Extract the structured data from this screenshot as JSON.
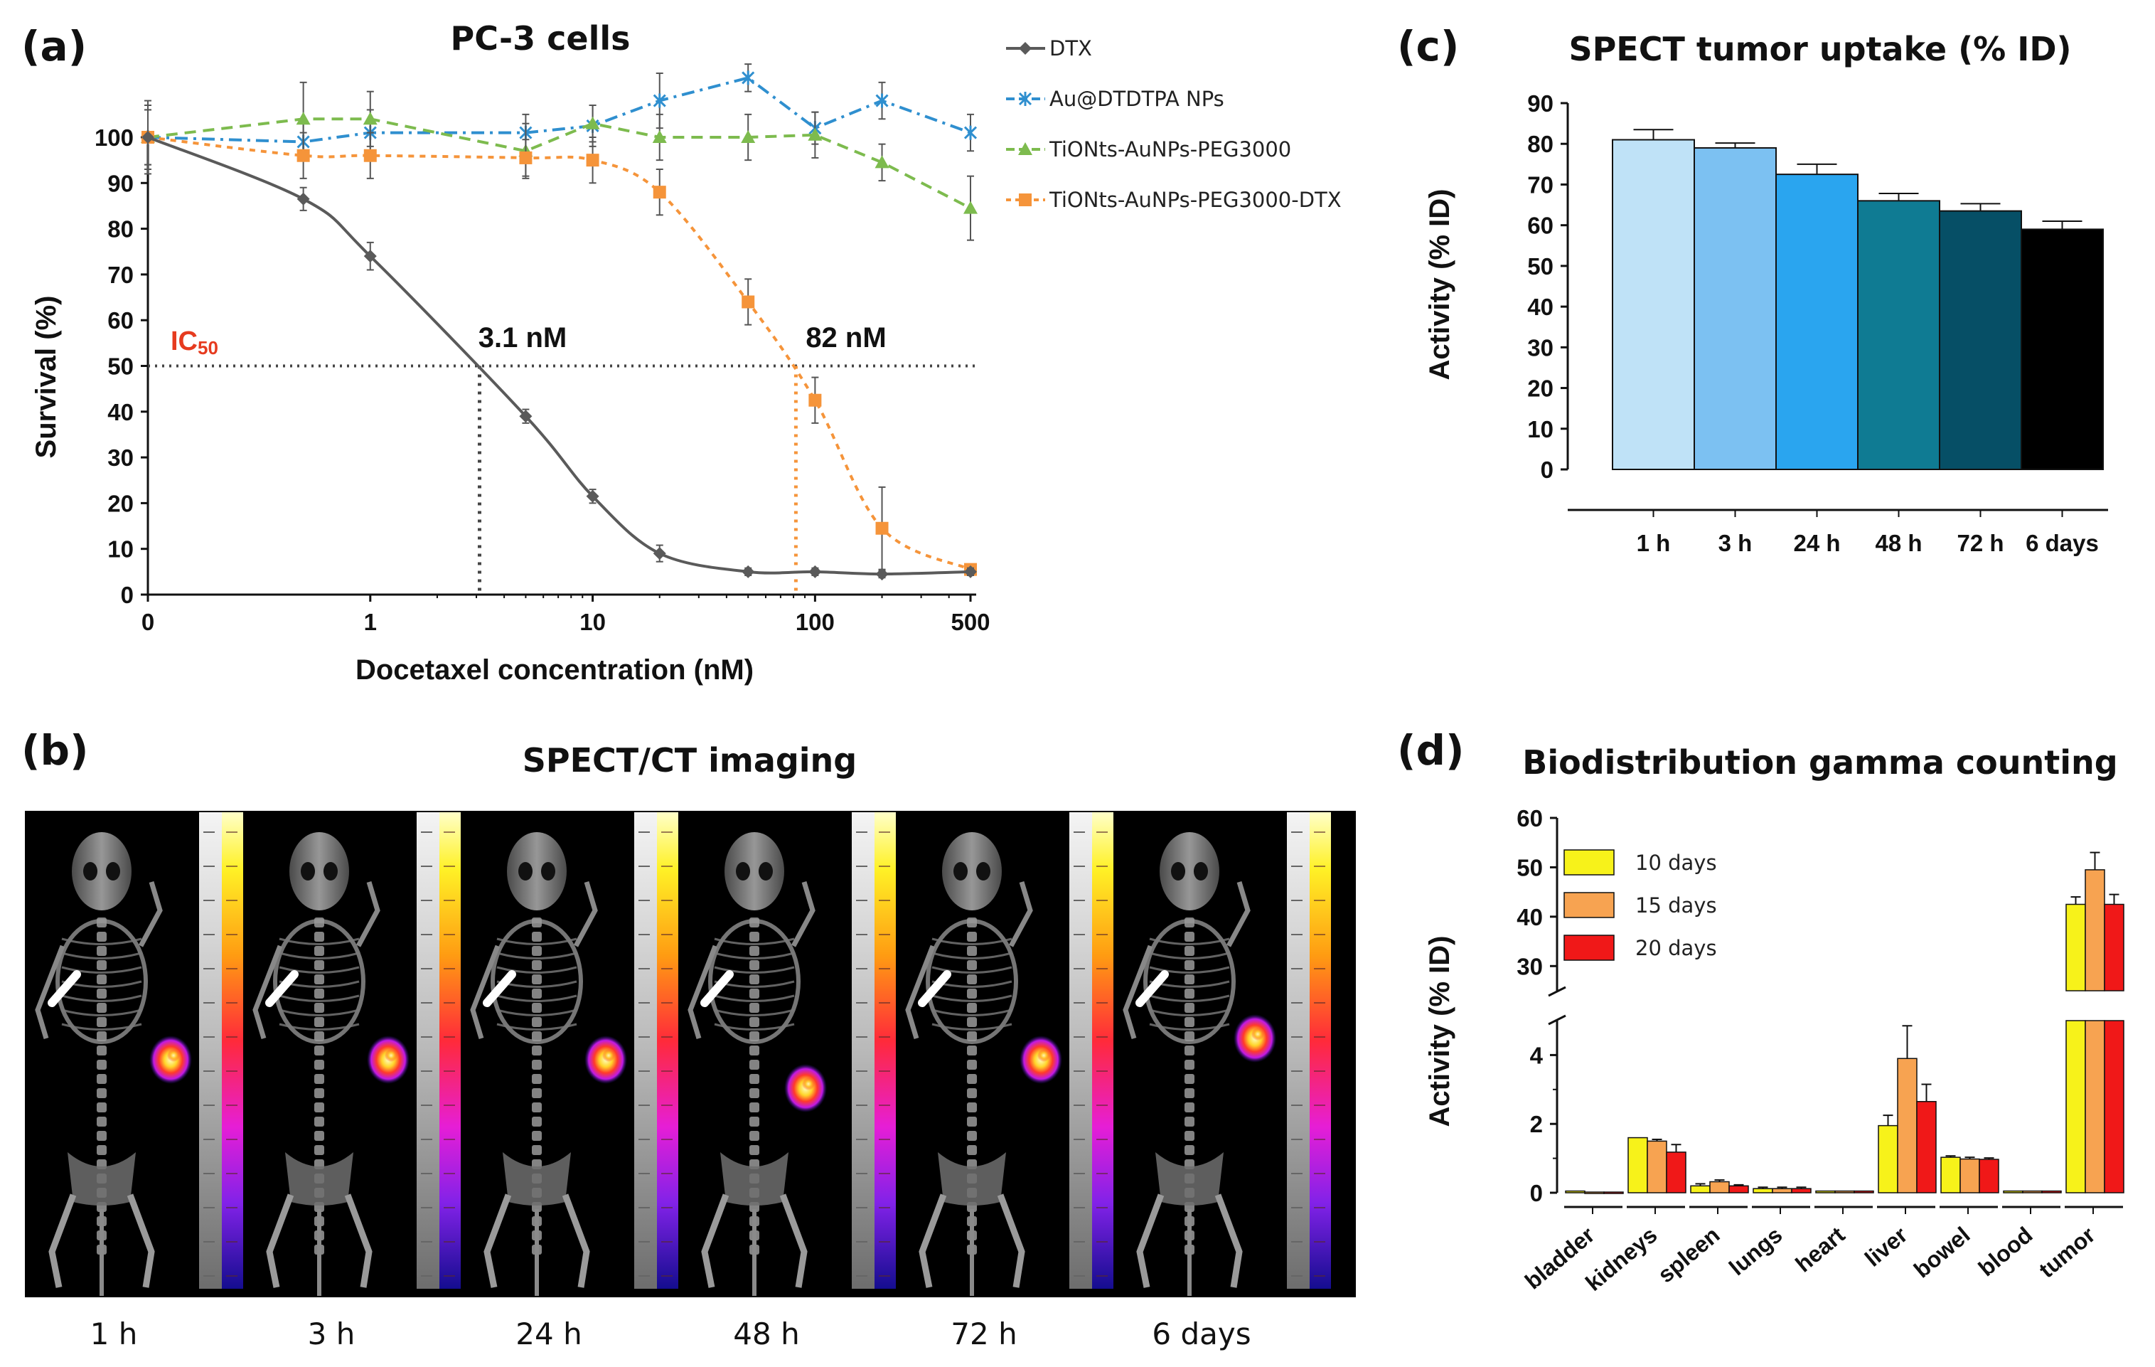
{
  "panels": {
    "a": {
      "letter": "(a)",
      "title": "PC-3 cells"
    },
    "b": {
      "letter": "(b)",
      "title": "SPECT/CT imaging"
    },
    "c": {
      "letter": "(c)",
      "title": "SPECT tumor uptake (% ID)"
    },
    "d": {
      "letter": "(d)",
      "title": "Biodistribution gamma counting"
    }
  },
  "chart_data": [
    {
      "panel": "a",
      "type": "line",
      "title": "PC-3 cells",
      "xlabel": "Docetaxel concentration (nM)",
      "ylabel": "Survival (%)",
      "xscale": "log",
      "xticks": [
        "0",
        "1",
        "10",
        "100",
        "500"
      ],
      "yticks": [
        0,
        10,
        20,
        30,
        40,
        50,
        60,
        70,
        80,
        90,
        100
      ],
      "ylim": [
        0,
        100
      ],
      "legend_position": "right",
      "x": [
        0.1,
        0.5,
        1,
        5,
        10,
        20,
        50,
        100,
        200,
        500
      ],
      "series": [
        {
          "name": "DTX",
          "color": "#5a5a5a",
          "marker": "diamond",
          "values": [
            100,
            86.5,
            74,
            39,
            21.5,
            9,
            5,
            5,
            4.5,
            5
          ]
        },
        {
          "name": "Au@DTDTPA NPs",
          "color": "#2f8fcf",
          "marker": "x",
          "values": [
            100,
            99,
            101,
            101,
            102.5,
            108,
            113,
            102,
            108,
            101
          ]
        },
        {
          "name": "TiONts-AuNPs-PEG3000",
          "color": "#7dbb4e",
          "marker": "triangle",
          "values": [
            100,
            104,
            104,
            97,
            103,
            100,
            100,
            100.5,
            94.5,
            84.5
          ]
        },
        {
          "name": "TiONts-AuNPs-PEG3000-DTX",
          "color": "#f5943a",
          "marker": "square",
          "values": [
            100,
            96,
            96,
            95.5,
            95,
            88,
            64,
            42.5,
            14.5,
            5.5
          ]
        }
      ],
      "annotations": {
        "ic50_label": "IC50",
        "ic50_level": 50,
        "dtx_ic50": "3.1 nM",
        "dtx_ic50_x": 3.1,
        "np_ic50": "82 nM",
        "np_ic50_x": 82
      }
    },
    {
      "panel": "c",
      "type": "bar",
      "title": "SPECT tumor uptake (% ID)",
      "xlabel": "",
      "ylabel": "Activity (% ID)",
      "categories": [
        "1 h",
        "3 h",
        "24 h",
        "48 h",
        "72 h",
        "6 days"
      ],
      "values": [
        81,
        79,
        72.5,
        66,
        63.5,
        59
      ],
      "errors": [
        2.5,
        1.2,
        2.5,
        1.8,
        1.8,
        2
      ],
      "colors": [
        "#bfe2f7",
        "#7cc1f2",
        "#2aa5ef",
        "#0f7b93",
        "#064f66",
        "#000000"
      ],
      "ylim": [
        0,
        90
      ],
      "yticks": [
        0,
        10,
        20,
        30,
        40,
        50,
        60,
        70,
        80,
        90
      ]
    },
    {
      "panel": "d",
      "type": "bar",
      "title": "Biodistribution gamma counting",
      "xlabel": "",
      "ylabel": "Activity (% ID)",
      "broken_axis": {
        "lower": [
          0,
          5
        ],
        "upper": [
          25,
          60
        ]
      },
      "yticks_lower": [
        0,
        2,
        4
      ],
      "yticks_upper": [
        30,
        40,
        50,
        60
      ],
      "categories": [
        "bladder",
        "kidneys",
        "spleen",
        "lungs",
        "heart",
        "liver",
        "bowel",
        "blood",
        "tumor"
      ],
      "legend_position": "top-left",
      "series": [
        {
          "name": "10 days",
          "color": "#f7f21a",
          "values": [
            0.05,
            1.6,
            0.2,
            0.12,
            0.05,
            1.95,
            1.03,
            0.05,
            42.5
          ],
          "errors": [
            0,
            0,
            0.06,
            0.04,
            0,
            0.3,
            0.04,
            0,
            1.5
          ]
        },
        {
          "name": "15 days",
          "color": "#f7a351",
          "values": [
            0.02,
            1.5,
            0.32,
            0.12,
            0.05,
            3.9,
            0.98,
            0.05,
            49.5
          ],
          "errors": [
            0,
            0.05,
            0.05,
            0.04,
            0,
            0.95,
            0.05,
            0,
            3.5
          ]
        },
        {
          "name": "20 days",
          "color": "#f01818",
          "values": [
            0.02,
            1.18,
            0.2,
            0.12,
            0.05,
            2.65,
            0.97,
            0.05,
            42.5
          ],
          "errors": [
            0,
            0.22,
            0.03,
            0.04,
            0,
            0.5,
            0.04,
            0,
            2
          ]
        }
      ]
    }
  ],
  "imaging": {
    "timepoints": [
      "1 h",
      "3 h",
      "24 h",
      "48 h",
      "72 h",
      "6 days"
    ],
    "tumor_positions": [
      "right",
      "right",
      "right",
      "lower-right",
      "right",
      "upper-right"
    ]
  }
}
